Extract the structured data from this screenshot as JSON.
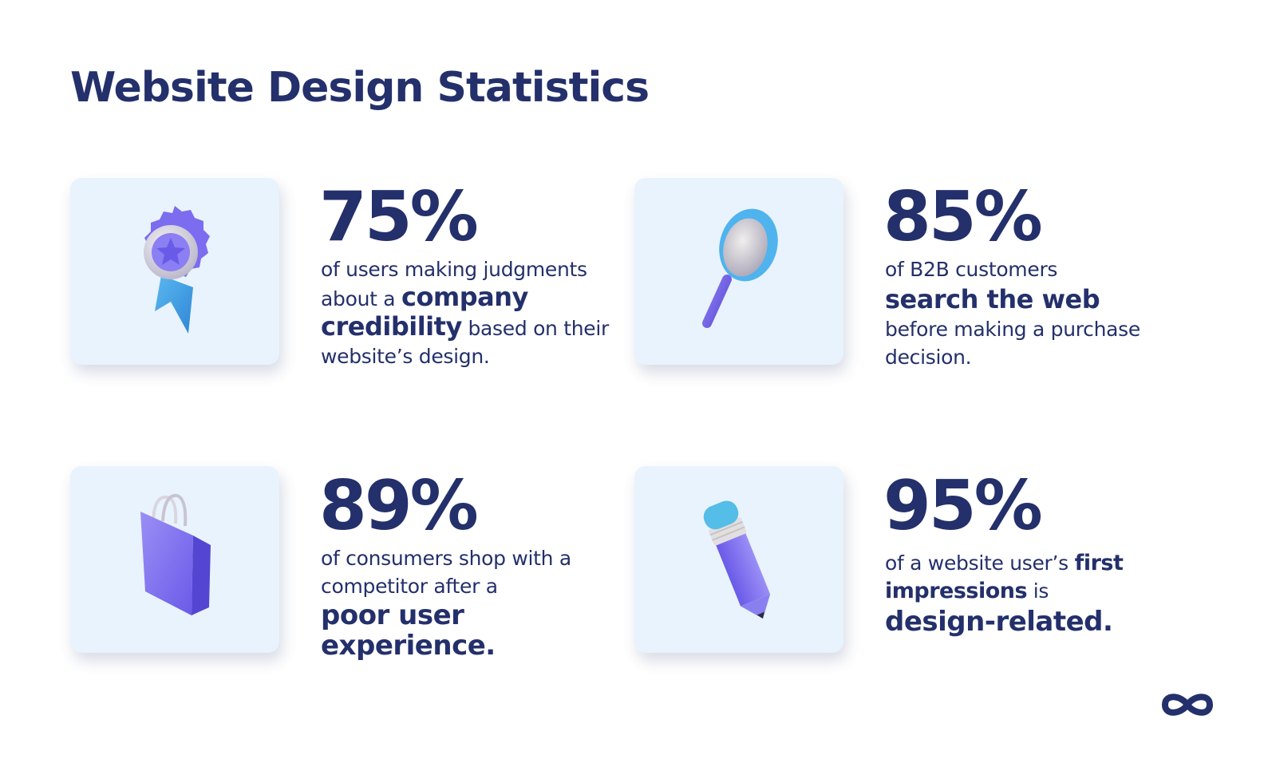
{
  "title": "Website Design Statistics",
  "colors": {
    "navy": "#24306b",
    "card_bg": "#e9f3fd",
    "purple": "#7b6cf0",
    "blue": "#3aa6e8"
  },
  "stats": [
    {
      "icon": "award-ribbon-icon",
      "percent": "75%",
      "pre": "of users making judgments about a",
      "bold": "company credibility",
      "post": "based on their website’s design."
    },
    {
      "icon": "magnifying-glass-icon",
      "percent": "85%",
      "pre": "of B2B customers",
      "bold": "search the web",
      "post": "before making a purchase decision."
    },
    {
      "icon": "shopping-bag-icon",
      "percent": "89%",
      "pre": "of consumers shop with a competitor after a",
      "bold": "poor user experience."
    },
    {
      "icon": "pencil-icon",
      "percent": "95%",
      "pre": "of a website user’s",
      "bold": "first impressions",
      "mid": "is",
      "bold2": "design-related."
    }
  ],
  "logo": "infinity-logo-icon"
}
